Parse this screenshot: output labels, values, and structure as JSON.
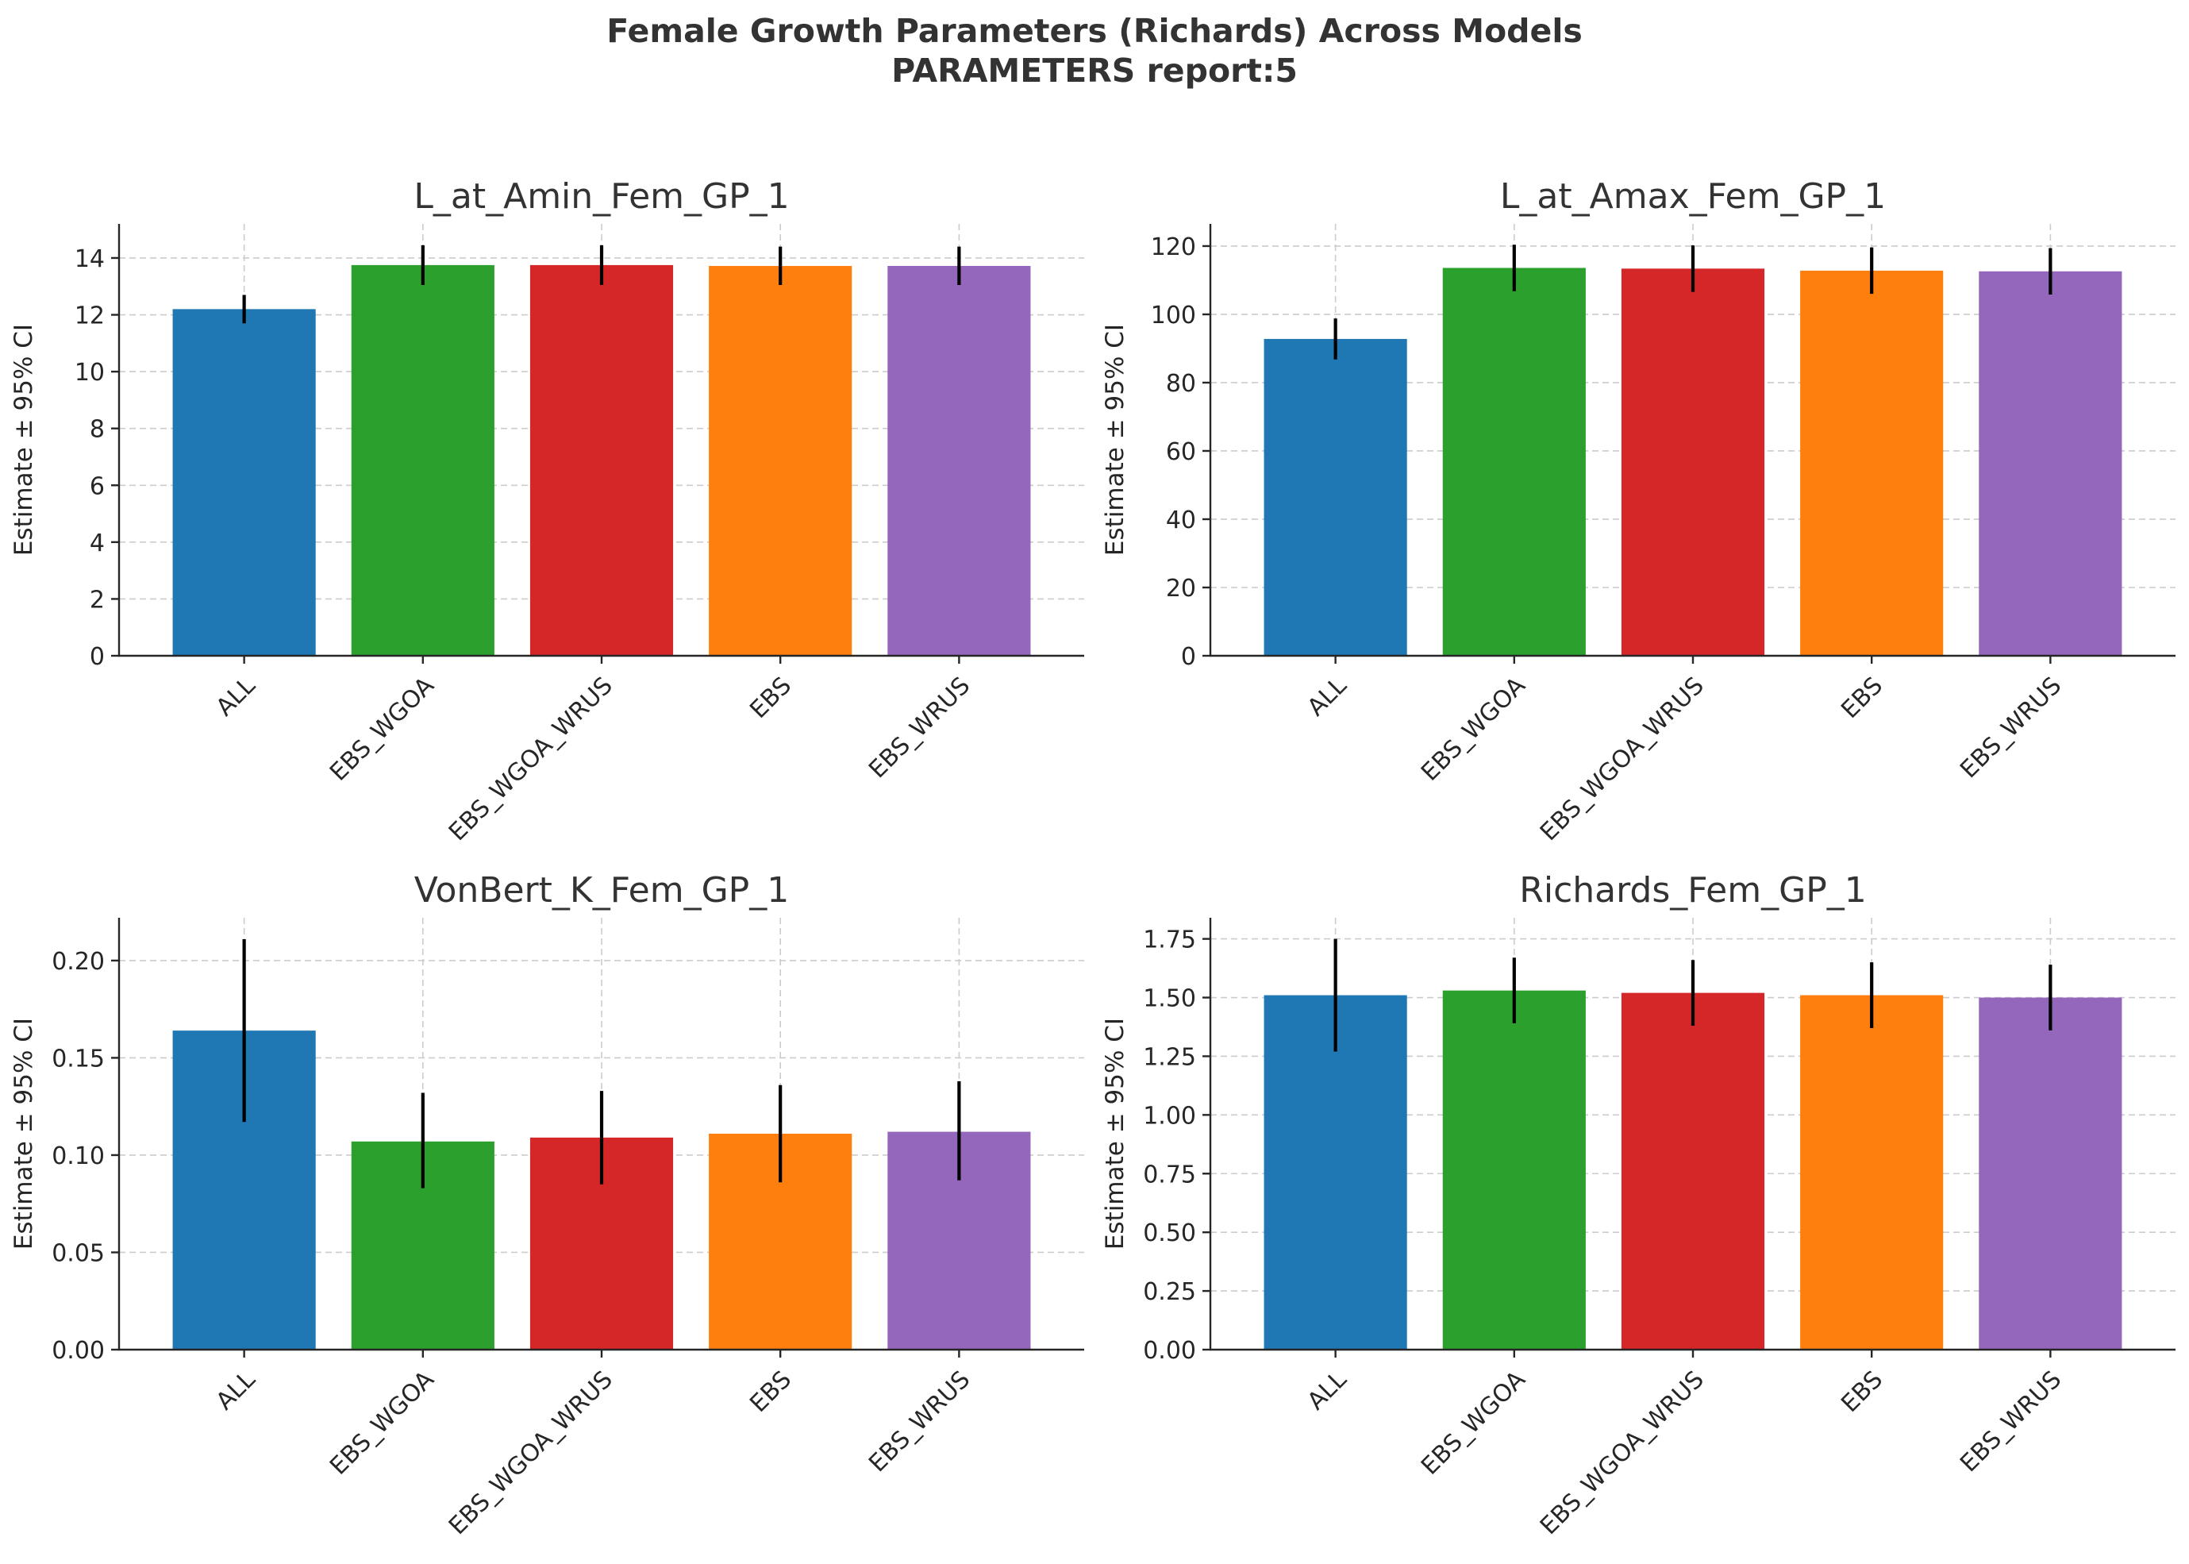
{
  "figure": {
    "title_line1": "Female Growth Parameters (Richards) Across Models",
    "title_line2": "PARAMETERS report:5"
  },
  "colors": {
    "ALL": "#1f77b4",
    "EBS_WGOA": "#2ca02c",
    "EBS_WGOA_WRUS": "#d62728",
    "EBS": "#ff7f0e",
    "EBS_WRUS": "#9467bd"
  },
  "chart_data": [
    {
      "type": "bar",
      "title": "L_at_Amin_Fem_GP_1",
      "ylabel": "Estimate ± 95% CI",
      "categories": [
        "ALL",
        "EBS_WGOA",
        "EBS_WGOA_WRUS",
        "EBS",
        "EBS_WRUS"
      ],
      "values": [
        12.2,
        13.75,
        13.75,
        13.72,
        13.72
      ],
      "ci_low": [
        11.7,
        13.05,
        13.05,
        13.05,
        13.05
      ],
      "ci_high": [
        12.7,
        14.45,
        14.45,
        14.4,
        14.4
      ],
      "yticks": [
        0,
        2,
        4,
        6,
        8,
        10,
        12,
        14
      ],
      "ytick_labels": [
        "0",
        "2",
        "4",
        "6",
        "8",
        "10",
        "12",
        "14"
      ],
      "ylim": [
        0,
        15.2
      ],
      "grid": true
    },
    {
      "type": "bar",
      "title": "L_at_Amax_Fem_GP_1",
      "ylabel": "Estimate ± 95% CI",
      "categories": [
        "ALL",
        "EBS_WGOA",
        "EBS_WGOA_WRUS",
        "EBS",
        "EBS_WRUS"
      ],
      "values": [
        92.8,
        113.6,
        113.4,
        112.8,
        112.6
      ],
      "ci_low": [
        86.8,
        106.8,
        106.6,
        106.0,
        105.8
      ],
      "ci_high": [
        98.8,
        120.4,
        120.2,
        119.6,
        119.4
      ],
      "yticks": [
        0,
        20,
        40,
        60,
        80,
        100,
        120
      ],
      "ytick_labels": [
        "0",
        "20",
        "40",
        "60",
        "80",
        "100",
        "120"
      ],
      "ylim": [
        0,
        126.5
      ],
      "grid": true
    },
    {
      "type": "bar",
      "title": "VonBert_K_Fem_GP_1",
      "ylabel": "Estimate ± 95% CI",
      "categories": [
        "ALL",
        "EBS_WGOA",
        "EBS_WGOA_WRUS",
        "EBS",
        "EBS_WRUS"
      ],
      "values": [
        0.164,
        0.107,
        0.109,
        0.111,
        0.112
      ],
      "ci_low": [
        0.117,
        0.083,
        0.085,
        0.086,
        0.087
      ],
      "ci_high": [
        0.211,
        0.132,
        0.133,
        0.136,
        0.138
      ],
      "yticks": [
        0,
        0.05,
        0.1,
        0.15,
        0.2
      ],
      "ytick_labels": [
        "0.00",
        "0.05",
        "0.10",
        "0.15",
        "0.20"
      ],
      "ylim": [
        0,
        0.222
      ],
      "grid": true
    },
    {
      "type": "bar",
      "title": "Richards_Fem_GP_1",
      "ylabel": "Estimate ± 95% CI",
      "categories": [
        "ALL",
        "EBS_WGOA",
        "EBS_WGOA_WRUS",
        "EBS",
        "EBS_WRUS"
      ],
      "values": [
        1.51,
        1.53,
        1.52,
        1.51,
        1.5
      ],
      "ci_low": [
        1.27,
        1.39,
        1.38,
        1.37,
        1.36
      ],
      "ci_high": [
        1.75,
        1.67,
        1.66,
        1.65,
        1.64
      ],
      "yticks": [
        0,
        0.25,
        0.5,
        0.75,
        1.0,
        1.25,
        1.5,
        1.75
      ],
      "ytick_labels": [
        "0.00",
        "0.25",
        "0.50",
        "0.75",
        "1.00",
        "1.25",
        "1.50",
        "1.75"
      ],
      "ylim": [
        0,
        1.84
      ],
      "grid": true
    }
  ]
}
